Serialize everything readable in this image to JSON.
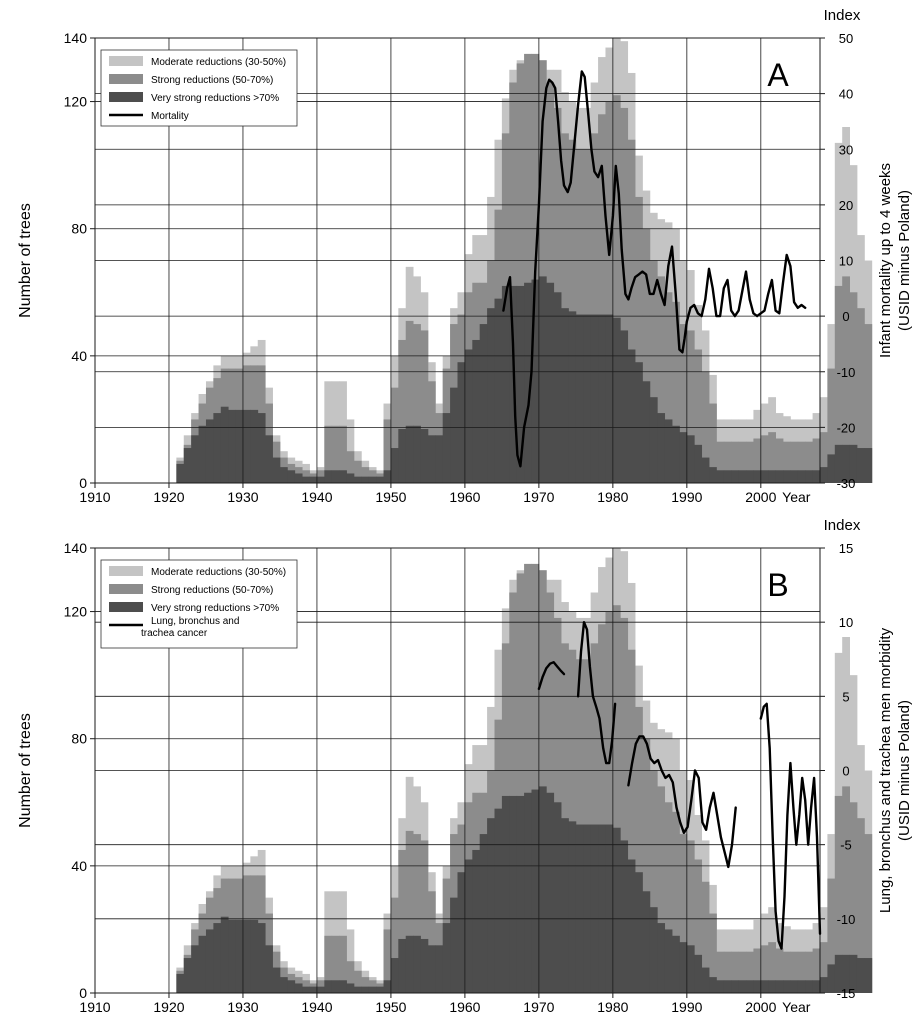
{
  "chart_data": [
    {
      "type": "bar",
      "panel_label": "A",
      "xlim": [
        1910,
        2008
      ],
      "x_ticks": [
        1910,
        1920,
        1930,
        1940,
        1950,
        1960,
        1970,
        1980,
        1990,
        2000
      ],
      "x_end_label": "Year",
      "ylabel": "Number of trees",
      "ylim": [
        0,
        140
      ],
      "y_ticks": [
        0,
        40,
        80,
        120,
        140
      ],
      "y2_title": "Index",
      "y2label_lines": [
        "Infant mortality up to 4 weeks",
        "(USID minus Poland)"
      ],
      "y2lim": [
        -30,
        50
      ],
      "y2_ticks": [
        -30,
        -20,
        -10,
        0,
        10,
        20,
        30,
        40,
        50
      ],
      "grid": true,
      "legend_position": "top-left",
      "series": [
        {
          "name": "Moderate reductions (30-50%)",
          "color": "#c4c4c4",
          "values": [
            0,
            0,
            0,
            0,
            0,
            0,
            0,
            0,
            0,
            0,
            0,
            8,
            15,
            22,
            28,
            32,
            37,
            40,
            40,
            40,
            41,
            43,
            45,
            30,
            15,
            10,
            8,
            7,
            6,
            4,
            5,
            32,
            32,
            32,
            20,
            10,
            7,
            5,
            4,
            25,
            40,
            55,
            68,
            65,
            60,
            38,
            25,
            40,
            55,
            60,
            72,
            78,
            78,
            90,
            108,
            121,
            130,
            133,
            133,
            134,
            133,
            130,
            130,
            123,
            120,
            118,
            118,
            126,
            134,
            137,
            140,
            139,
            129,
            103,
            92,
            85,
            83,
            82,
            80,
            70,
            67,
            56,
            48,
            34,
            20,
            20,
            20,
            20,
            20,
            23,
            25,
            27,
            22,
            21,
            20,
            20,
            20,
            22,
            27,
            50,
            107,
            112,
            100,
            78,
            70
          ]
        },
        {
          "name": "Strong reductions (50-70%)",
          "color": "#8c8c8c",
          "values": [
            0,
            0,
            0,
            0,
            0,
            0,
            0,
            0,
            0,
            0,
            0,
            7,
            12,
            20,
            25,
            30,
            33,
            36,
            36,
            36,
            37,
            37,
            37,
            25,
            13,
            8,
            6,
            5,
            4,
            3,
            4,
            18,
            18,
            18,
            10,
            7,
            5,
            4,
            3,
            20,
            30,
            45,
            51,
            50,
            48,
            32,
            22,
            36,
            50,
            53,
            60,
            63,
            63,
            70,
            86,
            110,
            126,
            132,
            135,
            135,
            133,
            126,
            118,
            110,
            108,
            105,
            105,
            110,
            116,
            120,
            122,
            118,
            108,
            90,
            80,
            70,
            65,
            60,
            57,
            50,
            48,
            42,
            35,
            25,
            13,
            13,
            13,
            13,
            13,
            14,
            15,
            16,
            14,
            13,
            13,
            13,
            13,
            14,
            16,
            36,
            62,
            65,
            60,
            55,
            50
          ]
        },
        {
          "name": "Very strong reductions >70%",
          "color": "#4d4d4d",
          "values": [
            0,
            0,
            0,
            0,
            0,
            0,
            0,
            0,
            0,
            0,
            0,
            6,
            11,
            15,
            18,
            20,
            22,
            24,
            23,
            23,
            23,
            23,
            22,
            15,
            8,
            5,
            4,
            3,
            2,
            2,
            2,
            4,
            4,
            4,
            3,
            2,
            2,
            2,
            2,
            4,
            11,
            17,
            18,
            18,
            17,
            15,
            15,
            22,
            30,
            38,
            42,
            45,
            50,
            55,
            58,
            62,
            62,
            62,
            63,
            64,
            65,
            63,
            60,
            55,
            54,
            53,
            53,
            53,
            53,
            53,
            52,
            48,
            42,
            38,
            32,
            27,
            22,
            20,
            18,
            16,
            15,
            12,
            8,
            5,
            4,
            4,
            4,
            4,
            4,
            4,
            4,
            4,
            4,
            4,
            4,
            4,
            4,
            4,
            5,
            9,
            12,
            12,
            12,
            11,
            11
          ]
        }
      ],
      "line": {
        "name": "Mortality",
        "axis": "right",
        "x": [
          1965.2,
          1965.7,
          1966.1,
          1966.5,
          1966.8,
          1967.1,
          1967.5,
          1968.0,
          1968.6,
          1969.0,
          1969.5,
          1970.0,
          1970.5,
          1971.0,
          1971.4,
          1971.8,
          1972.2,
          1972.6,
          1973.0,
          1973.4,
          1973.9,
          1974.3,
          1974.8,
          1975.3,
          1975.8,
          1976.2,
          1976.7,
          1977.1,
          1977.5,
          1978.0,
          1978.5,
          1979.0,
          1979.5,
          1980.0,
          1980.4,
          1980.8,
          1981.2,
          1981.7,
          1982.1,
          1982.5,
          1983.0,
          1983.5,
          1984.0,
          1984.5,
          1985.0,
          1985.5,
          1986.0,
          1986.5,
          1987.0,
          1987.5,
          1988.0,
          1988.5,
          1989.0,
          1989.4,
          1989.7,
          1990.0,
          1990.5,
          1991.0,
          1991.5,
          1992.0,
          1992.5,
          1993.0,
          1993.5,
          1994.0,
          1994.5,
          1995.0,
          1995.5,
          1996.0,
          1996.5,
          1997.0,
          1997.5,
          1998.0,
          1998.5,
          1999.0,
          1999.5,
          2000.0,
          2000.5,
          2001.0,
          2001.5,
          2002.0,
          2002.5,
          2003.0,
          2003.5,
          2004.0,
          2004.5,
          2005.0,
          2005.5,
          2006.0
        ],
        "y": [
          1,
          5,
          7,
          -5,
          -18,
          -25,
          -27,
          -20,
          -16,
          -10,
          8,
          20,
          35,
          41,
          42.5,
          42,
          41,
          35,
          28,
          23.5,
          22.3,
          24,
          31,
          38,
          44,
          43,
          36,
          30,
          26,
          25,
          27,
          18,
          11,
          18,
          27,
          22,
          12,
          4,
          3,
          5,
          7,
          7.5,
          8,
          7.5,
          4,
          4,
          6.5,
          4,
          2,
          9,
          12.5,
          4,
          -6,
          -6.5,
          -4,
          -1,
          1.5,
          2,
          0.5,
          0,
          3,
          8.5,
          5,
          0,
          0,
          5,
          6.5,
          1,
          0,
          1,
          4.5,
          8,
          3,
          0.5,
          0,
          0.5,
          1,
          4,
          6.5,
          1,
          0.5,
          6,
          11,
          9,
          2.5,
          1.5,
          2,
          1.5
        ]
      }
    },
    {
      "type": "bar",
      "panel_label": "B",
      "xlim": [
        1910,
        2008
      ],
      "x_ticks": [
        1910,
        1920,
        1930,
        1940,
        1950,
        1960,
        1970,
        1980,
        1990,
        2000
      ],
      "x_end_label": "Year",
      "ylabel": "Number of trees",
      "ylim": [
        0,
        140
      ],
      "y_ticks": [
        0,
        40,
        80,
        120,
        140
      ],
      "y2_title": "Index",
      "y2label_lines": [
        "Lung, bronchus and trachea men morbidity",
        "(USID minus Poland)"
      ],
      "y2lim": [
        -15,
        15
      ],
      "y2_ticks": [
        -15,
        -10,
        -5,
        0,
        5,
        10,
        15
      ],
      "grid": true,
      "legend_position": "top-left",
      "series": [
        {
          "name": "Moderate reductions (30-50%)",
          "color": "#c4c4c4",
          "values": [
            0,
            0,
            0,
            0,
            0,
            0,
            0,
            0,
            0,
            0,
            0,
            8,
            15,
            22,
            28,
            32,
            37,
            40,
            40,
            40,
            41,
            43,
            45,
            30,
            15,
            10,
            8,
            7,
            6,
            4,
            5,
            32,
            32,
            32,
            20,
            10,
            7,
            5,
            4,
            25,
            40,
            55,
            68,
            65,
            60,
            38,
            25,
            40,
            55,
            60,
            72,
            78,
            78,
            90,
            108,
            121,
            130,
            133,
            133,
            134,
            133,
            130,
            130,
            123,
            120,
            118,
            118,
            126,
            134,
            137,
            140,
            139,
            129,
            103,
            92,
            85,
            83,
            82,
            80,
            70,
            67,
            56,
            48,
            34,
            20,
            20,
            20,
            20,
            20,
            23,
            25,
            27,
            22,
            21,
            20,
            20,
            20,
            22,
            27,
            50,
            107,
            112,
            100,
            78,
            70
          ]
        },
        {
          "name": "Strong reductions (50-70%)",
          "color": "#8c8c8c",
          "values": [
            0,
            0,
            0,
            0,
            0,
            0,
            0,
            0,
            0,
            0,
            0,
            7,
            12,
            20,
            25,
            30,
            33,
            36,
            36,
            36,
            37,
            37,
            37,
            25,
            13,
            8,
            6,
            5,
            4,
            3,
            4,
            18,
            18,
            18,
            10,
            7,
            5,
            4,
            3,
            20,
            30,
            45,
            51,
            50,
            48,
            32,
            22,
            36,
            50,
            53,
            60,
            63,
            63,
            70,
            86,
            110,
            126,
            132,
            135,
            135,
            133,
            126,
            118,
            110,
            108,
            105,
            105,
            110,
            116,
            120,
            122,
            118,
            108,
            90,
            80,
            70,
            65,
            60,
            57,
            50,
            48,
            42,
            35,
            25,
            13,
            13,
            13,
            13,
            13,
            14,
            15,
            16,
            14,
            13,
            13,
            13,
            13,
            14,
            16,
            36,
            62,
            65,
            60,
            55,
            50
          ]
        },
        {
          "name": "Very strong reductions >70%",
          "color": "#4d4d4d",
          "values": [
            0,
            0,
            0,
            0,
            0,
            0,
            0,
            0,
            0,
            0,
            0,
            6,
            11,
            15,
            18,
            20,
            22,
            24,
            23,
            23,
            23,
            23,
            22,
            15,
            8,
            5,
            4,
            3,
            2,
            2,
            2,
            4,
            4,
            4,
            3,
            2,
            2,
            2,
            2,
            4,
            11,
            17,
            18,
            18,
            17,
            15,
            15,
            22,
            30,
            38,
            42,
            45,
            50,
            55,
            58,
            62,
            62,
            62,
            63,
            64,
            65,
            63,
            60,
            55,
            54,
            53,
            53,
            53,
            53,
            53,
            52,
            48,
            42,
            38,
            32,
            27,
            22,
            20,
            18,
            16,
            15,
            12,
            8,
            5,
            4,
            4,
            4,
            4,
            4,
            4,
            4,
            4,
            4,
            4,
            4,
            4,
            4,
            4,
            5,
            9,
            12,
            12,
            12,
            11,
            11
          ]
        }
      ],
      "line": {
        "name": "Lung, bronchus and trachea cancer",
        "axis": "right",
        "segments": [
          {
            "x": [
              1970.0,
              1970.5,
              1971.0,
              1971.5,
              1972.0,
              1972.5,
              1973.0,
              1973.4
            ],
            "y": [
              5.5,
              6.3,
              6.9,
              7.2,
              7.3,
              7.0,
              6.7,
              6.5
            ]
          },
          {
            "x": [
              1975.3,
              1975.7,
              1976.1,
              1976.5,
              1976.9,
              1977.3,
              1977.8,
              1978.2,
              1978.7,
              1979.1,
              1979.5,
              1979.9,
              1980.3
            ],
            "y": [
              5.0,
              8.0,
              10.0,
              9.5,
              7.0,
              5.0,
              4.2,
              3.5,
              1.5,
              0.5,
              0.5,
              2.0,
              4.5
            ]
          },
          {
            "x": [
              1982.1,
              1982.6,
              1983.1,
              1983.6,
              1984.1,
              1984.6,
              1985.1,
              1985.6,
              1986.1,
              1986.6,
              1987.1,
              1987.6,
              1988.1,
              1988.6,
              1989.1,
              1989.6,
              1990.1,
              1990.6,
              1991.1,
              1991.6,
              1992.1,
              1992.6,
              1993.1,
              1993.6,
              1994.1,
              1994.6,
              1995.1,
              1995.6,
              1996.1,
              1996.6
            ],
            "y": [
              -1.0,
              0.5,
              1.8,
              2.3,
              2.3,
              1.8,
              0.8,
              0.5,
              0.7,
              0,
              -0.5,
              -0.3,
              -0.8,
              -2.5,
              -3.5,
              -4.2,
              -3.8,
              -2.0,
              0,
              -0.5,
              -3.5,
              -4.0,
              -2.5,
              -1.5,
              -3.0,
              -4.5,
              -5.5,
              -6.5,
              -5.0,
              -2.5
            ]
          },
          {
            "x": [
              2000.0,
              2000.4,
              2000.8,
              2001.2,
              2001.6,
              2002.0,
              2002.4,
              2002.8,
              2003.2,
              2003.6,
              2004.0,
              2004.4,
              2004.8,
              2005.2,
              2005.6,
              2006.0,
              2006.4,
              2006.8,
              2007.2,
              2007.6,
              2008.0
            ],
            "y": [
              3.5,
              4.3,
              4.5,
              1.5,
              -4.5,
              -9.5,
              -11.5,
              -12,
              -8.5,
              -3.0,
              0.5,
              -2.5,
              -5.0,
              -3.0,
              -0.5,
              -2.0,
              -5.0,
              -2.5,
              -0.5,
              -4.5,
              -11.0
            ]
          }
        ]
      }
    }
  ]
}
